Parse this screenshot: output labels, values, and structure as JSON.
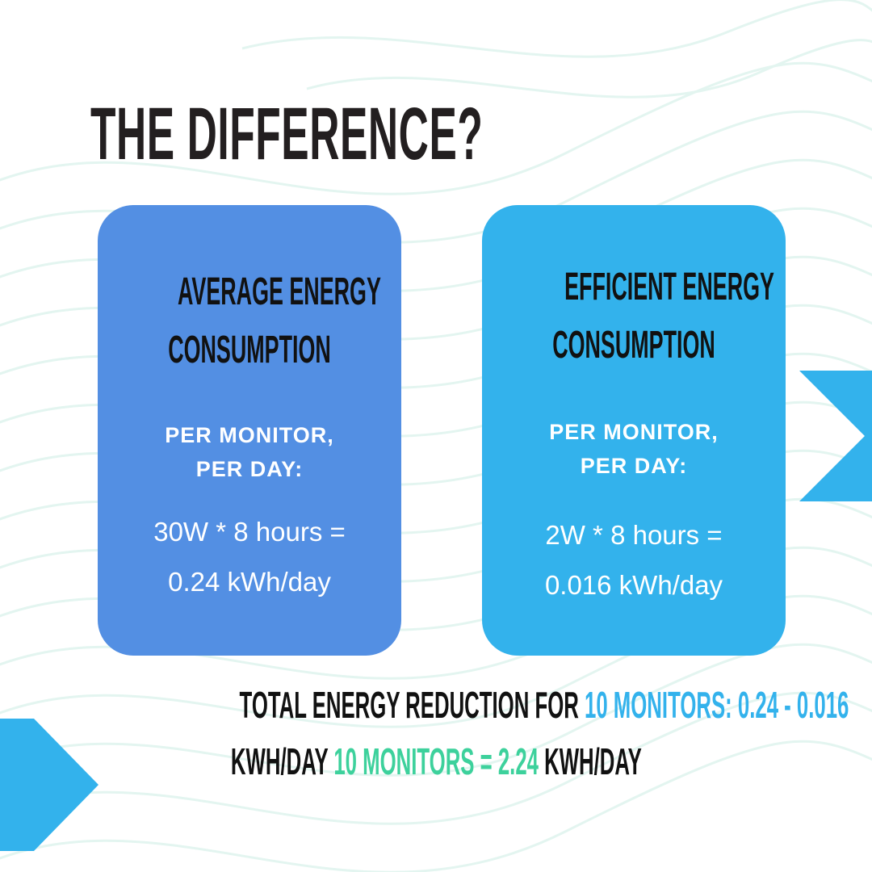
{
  "headline": "THE DIFFERENCE?",
  "colors": {
    "left_card": "#538fe3",
    "right_card": "#33b2ec",
    "accent_blue": "#33b2ec",
    "accent_green": "#3dd19c",
    "arrow": "#33b2ec",
    "waves": "#e3f5f0"
  },
  "cards": [
    {
      "title_line1": "AVERAGE ENERGY",
      "title_line2": "CONSUMPTION",
      "sub_line1": "PER MONITOR,",
      "sub_line2": "PER DAY:",
      "formula_line1": "30W * 8 hours =",
      "formula_line2": "0.24 kWh/day"
    },
    {
      "title_line1": "EFFICIENT ENERGY",
      "title_line2": "CONSUMPTION",
      "sub_line1": "PER MONITOR,",
      "sub_line2": "PER DAY:",
      "formula_line1": "2W * 8 hours =",
      "formula_line2": "0.016 kWh/day"
    }
  ],
  "footer": {
    "line1_a": "TOTAL ENERGY REDUCTION FOR ",
    "line1_b": "10 MONITORS: 0.24 - 0.016",
    "line2_a": "KWH/DAY ",
    "line2_b": "10 MONITORS = 2.24",
    "line2_c": " KWH/DAY"
  },
  "icons": {
    "right_arrow": "chevron-right-icon",
    "left_arrow": "chevron-right-icon"
  }
}
